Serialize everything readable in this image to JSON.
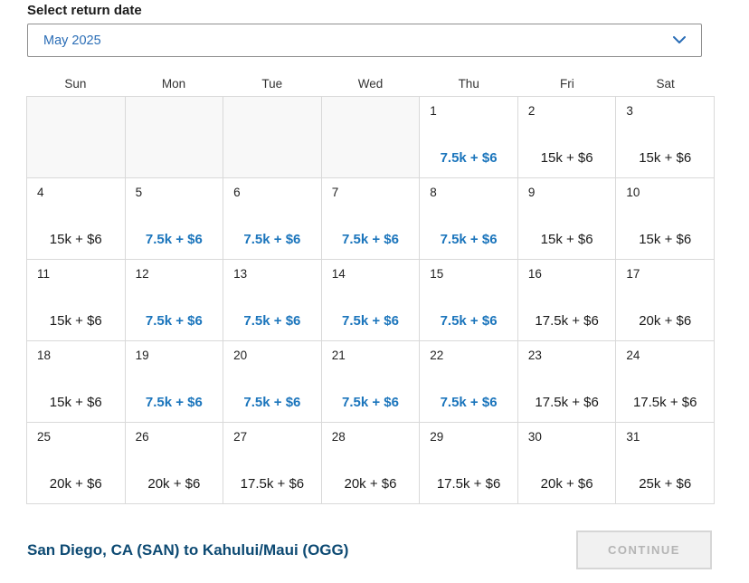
{
  "page": {
    "title": "Select return date"
  },
  "month_select": {
    "value": "May 2025",
    "chevron_icon": "chevron-down-icon"
  },
  "calendar": {
    "weekdays": [
      "Sun",
      "Mon",
      "Tue",
      "Wed",
      "Thu",
      "Fri",
      "Sat"
    ],
    "weeks": [
      [
        {},
        {},
        {},
        {},
        {
          "day": "1",
          "price": "7.5k + $6",
          "deal": true
        },
        {
          "day": "2",
          "price": "15k + $6",
          "deal": false
        },
        {
          "day": "3",
          "price": "15k + $6",
          "deal": false
        }
      ],
      [
        {
          "day": "4",
          "price": "15k + $6",
          "deal": false
        },
        {
          "day": "5",
          "price": "7.5k + $6",
          "deal": true
        },
        {
          "day": "6",
          "price": "7.5k + $6",
          "deal": true
        },
        {
          "day": "7",
          "price": "7.5k + $6",
          "deal": true
        },
        {
          "day": "8",
          "price": "7.5k + $6",
          "deal": true
        },
        {
          "day": "9",
          "price": "15k + $6",
          "deal": false
        },
        {
          "day": "10",
          "price": "15k + $6",
          "deal": false
        }
      ],
      [
        {
          "day": "11",
          "price": "15k + $6",
          "deal": false
        },
        {
          "day": "12",
          "price": "7.5k + $6",
          "deal": true
        },
        {
          "day": "13",
          "price": "7.5k + $6",
          "deal": true
        },
        {
          "day": "14",
          "price": "7.5k + $6",
          "deal": true
        },
        {
          "day": "15",
          "price": "7.5k + $6",
          "deal": true
        },
        {
          "day": "16",
          "price": "17.5k + $6",
          "deal": false
        },
        {
          "day": "17",
          "price": "20k + $6",
          "deal": false
        }
      ],
      [
        {
          "day": "18",
          "price": "15k + $6",
          "deal": false
        },
        {
          "day": "19",
          "price": "7.5k + $6",
          "deal": true
        },
        {
          "day": "20",
          "price": "7.5k + $6",
          "deal": true
        },
        {
          "day": "21",
          "price": "7.5k + $6",
          "deal": true
        },
        {
          "day": "22",
          "price": "7.5k + $6",
          "deal": true
        },
        {
          "day": "23",
          "price": "17.5k + $6",
          "deal": false
        },
        {
          "day": "24",
          "price": "17.5k + $6",
          "deal": false
        }
      ],
      [
        {
          "day": "25",
          "price": "20k + $6",
          "deal": false
        },
        {
          "day": "26",
          "price": "20k + $6",
          "deal": false
        },
        {
          "day": "27",
          "price": "17.5k + $6",
          "deal": false
        },
        {
          "day": "28",
          "price": "20k + $6",
          "deal": false
        },
        {
          "day": "29",
          "price": "17.5k + $6",
          "deal": false
        },
        {
          "day": "30",
          "price": "20k + $6",
          "deal": false
        },
        {
          "day": "31",
          "price": "25k + $6",
          "deal": false
        }
      ]
    ]
  },
  "footer": {
    "route": "San Diego, CA (SAN) to Kahului/Maui (OGG)",
    "continue_label": "CONTINUE"
  },
  "colors": {
    "deal_price": "#1b75bc",
    "standard_price": "#1a1a1a",
    "link_blue": "#2a6db6",
    "route_navy": "#0d4a73"
  }
}
